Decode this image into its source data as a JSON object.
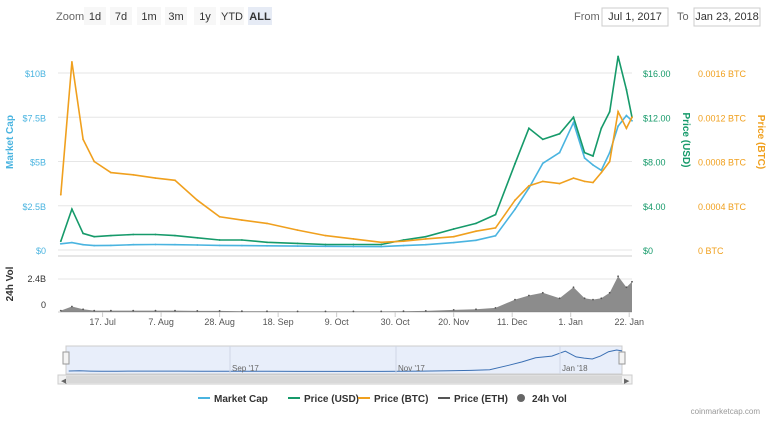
{
  "toolbar": {
    "zoom_label": "Zoom",
    "zoom_buttons": [
      "1d",
      "7d",
      "1m",
      "3m",
      "1y",
      "YTD",
      "ALL"
    ],
    "active_zoom": "ALL",
    "from_label": "From",
    "from_value": "Jul 1, 2017",
    "to_label": "To",
    "to_value": "Jan 23, 2018"
  },
  "chart_data": {
    "type": "line",
    "x_tick_labels": [
      "17. Jul",
      "7. Aug",
      "28. Aug",
      "18. Sep",
      "9. Oct",
      "30. Oct",
      "20. Nov",
      "11. Dec",
      "1. Jan",
      "22. Jan"
    ],
    "x_tick_dates": [
      "2017-07-17",
      "2017-08-07",
      "2017-08-28",
      "2017-09-18",
      "2017-10-09",
      "2017-10-30",
      "2017-11-20",
      "2017-12-11",
      "2018-01-01",
      "2018-01-22"
    ],
    "x_range": [
      "2017-07-01",
      "2018-01-23"
    ],
    "axes": {
      "market_cap": {
        "label": "Market Cap",
        "ticks": [
          "$0",
          "$2.5B",
          "$5B",
          "$7.5B",
          "$10B"
        ],
        "range": [
          0,
          10000000000
        ],
        "color": "#4ab4e0"
      },
      "price_usd": {
        "label": "Price (USD)",
        "ticks": [
          "$0",
          "$4.00",
          "$8.00",
          "$12.00",
          "$16.00"
        ],
        "range": [
          0,
          16
        ],
        "color": "#169a6a"
      },
      "price_btc": {
        "label": "Price (BTC)",
        "ticks": [
          "0 BTC",
          "0.0004 BTC",
          "0.0008 BTC",
          "0.0012 BTC",
          "0.0016 BTC"
        ],
        "range": [
          0,
          0.0016
        ],
        "color": "#f0a01e"
      },
      "volume": {
        "label": "24h Vol",
        "ticks": [
          "0",
          "2.4B"
        ],
        "range": [
          0,
          2400000000
        ],
        "color": "#555555"
      }
    },
    "dates": [
      "2017-07-02",
      "2017-07-06",
      "2017-07-10",
      "2017-07-14",
      "2017-07-20",
      "2017-07-28",
      "2017-08-05",
      "2017-08-12",
      "2017-08-20",
      "2017-08-28",
      "2017-09-05",
      "2017-09-14",
      "2017-09-25",
      "2017-10-05",
      "2017-10-15",
      "2017-10-25",
      "2017-11-02",
      "2017-11-10",
      "2017-11-20",
      "2017-11-28",
      "2017-12-05",
      "2017-12-12",
      "2017-12-17",
      "2017-12-22",
      "2017-12-28",
      "2018-01-02",
      "2018-01-06",
      "2018-01-09",
      "2018-01-12",
      "2018-01-15",
      "2018-01-18",
      "2018-01-21",
      "2018-01-23"
    ],
    "series": [
      {
        "name": "Market Cap",
        "axis": "market_cap",
        "color": "#4ab4e0",
        "values": [
          350000000,
          420000000,
          300000000,
          250000000,
          260000000,
          300000000,
          310000000,
          300000000,
          280000000,
          260000000,
          250000000,
          240000000,
          220000000,
          210000000,
          200000000,
          190000000,
          250000000,
          300000000,
          420000000,
          550000000,
          800000000,
          2300000000,
          3500000000,
          4900000000,
          5500000000,
          7200000000,
          5200000000,
          4800000000,
          4500000000,
          5500000000,
          7000000000,
          7600000000,
          7300000000
        ]
      },
      {
        "name": "Price (USD)",
        "axis": "price_usd",
        "color": "#169a6a",
        "values": [
          0.8,
          3.7,
          1.5,
          1.2,
          1.3,
          1.4,
          1.4,
          1.3,
          1.1,
          0.9,
          0.9,
          0.7,
          0.6,
          0.5,
          0.5,
          0.5,
          0.9,
          1.2,
          1.9,
          2.4,
          3.2,
          7.8,
          11.0,
          10.0,
          10.5,
          12.0,
          8.8,
          8.5,
          11.0,
          12.5,
          17.5,
          14.5,
          12.0
        ]
      },
      {
        "name": "Price (BTC)",
        "axis": "price_btc",
        "color": "#f0a01e",
        "values": [
          0.0005,
          0.0017,
          0.001,
          0.0008,
          0.0007,
          0.00068,
          0.00065,
          0.00063,
          0.00045,
          0.0003,
          0.00027,
          0.00024,
          0.00018,
          0.00013,
          0.0001,
          7e-05,
          8e-05,
          0.0001,
          0.00012,
          0.00017,
          0.0002,
          0.00045,
          0.00058,
          0.00062,
          0.0006,
          0.00065,
          0.00062,
          0.00061,
          0.0007,
          0.0008,
          0.00125,
          0.0011,
          0.0012
        ]
      },
      {
        "name": "24h Vol",
        "axis": "volume",
        "type": "area",
        "color": "#555555",
        "values": [
          100000000,
          400000000,
          200000000,
          100000000,
          100000000,
          100000000,
          100000000,
          100000000,
          80000000,
          80000000,
          60000000,
          50000000,
          40000000,
          40000000,
          40000000,
          40000000,
          60000000,
          80000000,
          150000000,
          200000000,
          300000000,
          900000000,
          1200000000,
          1400000000,
          1000000000,
          1800000000,
          1000000000,
          900000000,
          1000000000,
          1400000000,
          2600000000,
          1800000000,
          2200000000
        ]
      }
    ],
    "legend": [
      "Market Cap",
      "Price (USD)",
      "Price (BTC)",
      "Price (ETH)",
      "24h Vol"
    ],
    "legend_position": "bottom",
    "grid": true
  },
  "navigator": {
    "labels": [
      "Sep '17",
      "Nov '17",
      "Jan '18"
    ]
  },
  "credit": "coinmarketcap.com"
}
